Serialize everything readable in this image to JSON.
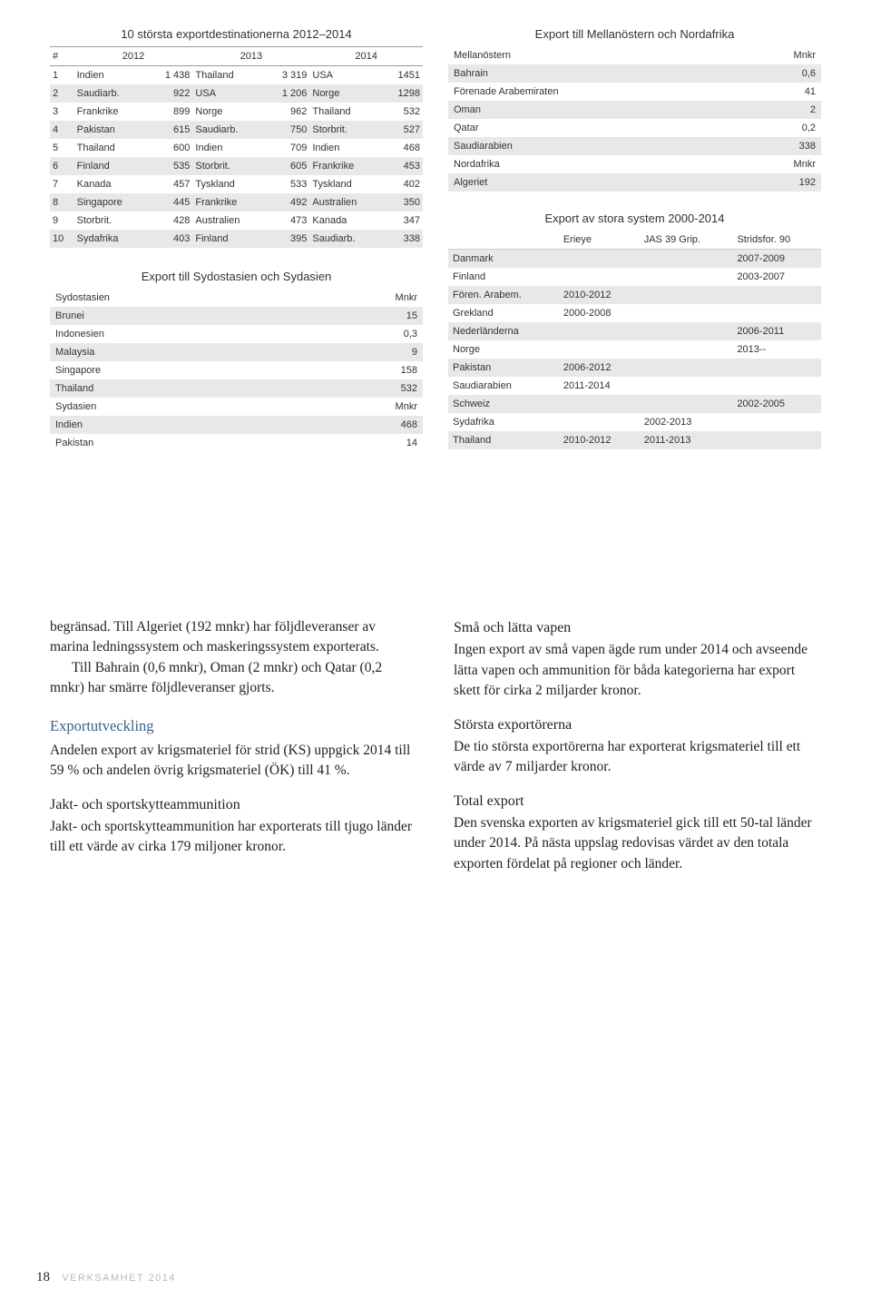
{
  "tables": {
    "destinations": {
      "title": "10 största exportdestinationerna 2012–2014",
      "years": [
        "2012",
        "2013",
        "2014"
      ],
      "hash": "#",
      "rows": [
        {
          "n": "1",
          "c12": "Indien",
          "v12": "1 438",
          "c13": "Thailand",
          "v13": "3 319",
          "c14": "USA",
          "v14": "1451"
        },
        {
          "n": "2",
          "c12": "Saudiarb.",
          "v12": "922",
          "c13": "USA",
          "v13": "1 206",
          "c14": "Norge",
          "v14": "1298"
        },
        {
          "n": "3",
          "c12": "Frankrike",
          "v12": "899",
          "c13": "Norge",
          "v13": "962",
          "c14": "Thailand",
          "v14": "532"
        },
        {
          "n": "4",
          "c12": "Pakistan",
          "v12": "615",
          "c13": "Saudiarb.",
          "v13": "750",
          "c14": "Storbrit.",
          "v14": "527"
        },
        {
          "n": "5",
          "c12": "Thailand",
          "v12": "600",
          "c13": "Indien",
          "v13": "709",
          "c14": "Indien",
          "v14": "468"
        },
        {
          "n": "6",
          "c12": "Finland",
          "v12": "535",
          "c13": "Storbrit.",
          "v13": "605",
          "c14": "Frankrike",
          "v14": "453"
        },
        {
          "n": "7",
          "c12": "Kanada",
          "v12": "457",
          "c13": "Tyskland",
          "v13": "533",
          "c14": "Tyskland",
          "v14": "402"
        },
        {
          "n": "8",
          "c12": "Singapore",
          "v12": "445",
          "c13": "Frankrike",
          "v13": "492",
          "c14": "Australien",
          "v14": "350"
        },
        {
          "n": "9",
          "c12": "Storbrit.",
          "v12": "428",
          "c13": "Australien",
          "v13": "473",
          "c14": "Kanada",
          "v14": "347"
        },
        {
          "n": "10",
          "c12": "Sydafrika",
          "v12": "403",
          "c13": "Finland",
          "v13": "395",
          "c14": "Saudiarb.",
          "v14": "338"
        }
      ]
    },
    "sydost": {
      "title": "Export till Sydostasien och Sydasien",
      "rows": [
        {
          "k": "Sydostasien",
          "v": "Mnkr"
        },
        {
          "k": "Brunei",
          "v": "15"
        },
        {
          "k": "Indonesien",
          "v": "0,3"
        },
        {
          "k": "Malaysia",
          "v": "9"
        },
        {
          "k": "Singapore",
          "v": "158"
        },
        {
          "k": "Thailand",
          "v": "532"
        },
        {
          "k": "Sydasien",
          "v": "Mnkr"
        },
        {
          "k": "Indien",
          "v": "468"
        },
        {
          "k": "Pakistan",
          "v": "14"
        }
      ]
    },
    "mellanost": {
      "title": "Export till Mellanöstern och Nordafrika",
      "rows": [
        {
          "k": "Mellanöstern",
          "v": "Mnkr"
        },
        {
          "k": "Bahrain",
          "v": "0,6"
        },
        {
          "k": "Förenade Arabemiraten",
          "v": "41"
        },
        {
          "k": "Oman",
          "v": "2"
        },
        {
          "k": "Qatar",
          "v": "0,2"
        },
        {
          "k": "Saudiarabien",
          "v": "338"
        },
        {
          "k": "Nordafrika",
          "v": "Mnkr"
        },
        {
          "k": "Algeriet",
          "v": "192"
        }
      ]
    },
    "systems": {
      "title": "Export av stora system 2000-2014",
      "cols": [
        "",
        "Erieye",
        "JAS 39 Grip.",
        "Stridsfor. 90"
      ],
      "rows": [
        {
          "c": "Danmark",
          "e": "",
          "j": "",
          "s": "2007-2009"
        },
        {
          "c": "Finland",
          "e": "",
          "j": "",
          "s": "2003-2007"
        },
        {
          "c": "Fören. Arabem.",
          "e": "2010-2012",
          "j": "",
          "s": ""
        },
        {
          "c": "Grekland",
          "e": "2000-2008",
          "j": "",
          "s": ""
        },
        {
          "c": "Nederländerna",
          "e": "",
          "j": "",
          "s": "2006-2011"
        },
        {
          "c": "Norge",
          "e": "",
          "j": "",
          "s": "2013--"
        },
        {
          "c": "Pakistan",
          "e": "2006-2012",
          "j": "",
          "s": ""
        },
        {
          "c": "Saudiarabien",
          "e": "2011-2014",
          "j": "",
          "s": ""
        },
        {
          "c": "Schweiz",
          "e": "",
          "j": "",
          "s": "2002-2005"
        },
        {
          "c": "Sydafrika",
          "e": "",
          "j": "2002-2013",
          "s": ""
        },
        {
          "c": "Thailand",
          "e": "2010-2012",
          "j": "2011-2013",
          "s": ""
        }
      ]
    }
  },
  "body": {
    "left": {
      "p1": "begränsad. Till Algeriet (192 mnkr) har följdleveranser av marina ledningssystem och maskeringssystem exporterats.",
      "p2": "Till Bahrain (0,6 mnkr), Oman (2 mnkr) och Qatar (0,2 mnkr) har smärre följdleveranser gjorts.",
      "h1": "Exportutveckling",
      "p3": "Andelen export av krigsmateriel för strid (KS) uppgick 2014 till 59 % och andelen övrig krigsmateriel (ÖK) till 41 %.",
      "h2": "Jakt- och sportskytteammunition",
      "p4": "Jakt- och sportskytteammunition har exporterats till tjugo länder till ett värde av cirka 179 miljoner kronor."
    },
    "right": {
      "h1": "Små och lätta vapen",
      "p1": "Ingen export av små vapen ägde rum under 2014 och avseende lätta vapen och ammunition för båda kategorierna har export skett för cirka 2 miljarder kronor.",
      "h2": "Största exportörerna",
      "p2": "De tio största exportörerna har exporterat krigsmateriel till ett värde av 7 miljarder kronor.",
      "h3": "Total export",
      "p3": "Den svenska exporten av krigsmateriel gick till ett 50-tal länder under 2014. På nästa uppslag redovisas värdet av den totala exporten fördelat på regioner och länder."
    }
  },
  "footer": {
    "page": "18",
    "label": "VERKSAMHET 2014"
  }
}
